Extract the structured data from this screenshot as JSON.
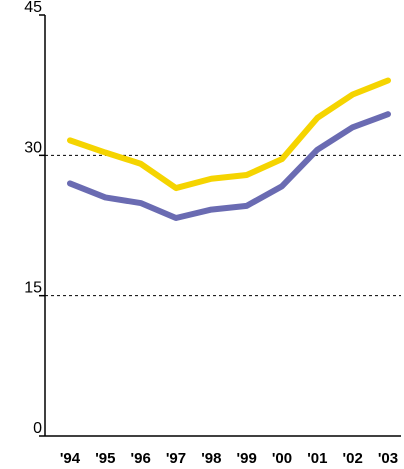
{
  "chart_data": {
    "type": "line",
    "title": "",
    "xlabel": "",
    "ylabel": "",
    "categories": [
      "'94",
      "'95",
      "'96",
      "'97",
      "'98",
      "'99",
      "'00",
      "'01",
      "'02",
      "'03"
    ],
    "series": [
      {
        "color": "#f5d400",
        "values": [
          31.6,
          30.3,
          29.1,
          26.5,
          27.5,
          27.9,
          29.6,
          34.0,
          36.5,
          38.0
        ]
      },
      {
        "color": "#6a6bb2",
        "values": [
          27.0,
          25.5,
          24.9,
          23.3,
          24.2,
          24.6,
          26.7,
          30.6,
          33.0,
          34.4
        ]
      }
    ],
    "ylim": [
      0,
      45
    ],
    "yticks": [
      {
        "value": 0,
        "label": "0"
      },
      {
        "value": 15,
        "label": "15"
      },
      {
        "value": 30,
        "label": "30"
      },
      {
        "value": 45,
        "label": "45"
      }
    ],
    "grid": "dashed horizontal at 15 and 30",
    "legend": "none"
  }
}
